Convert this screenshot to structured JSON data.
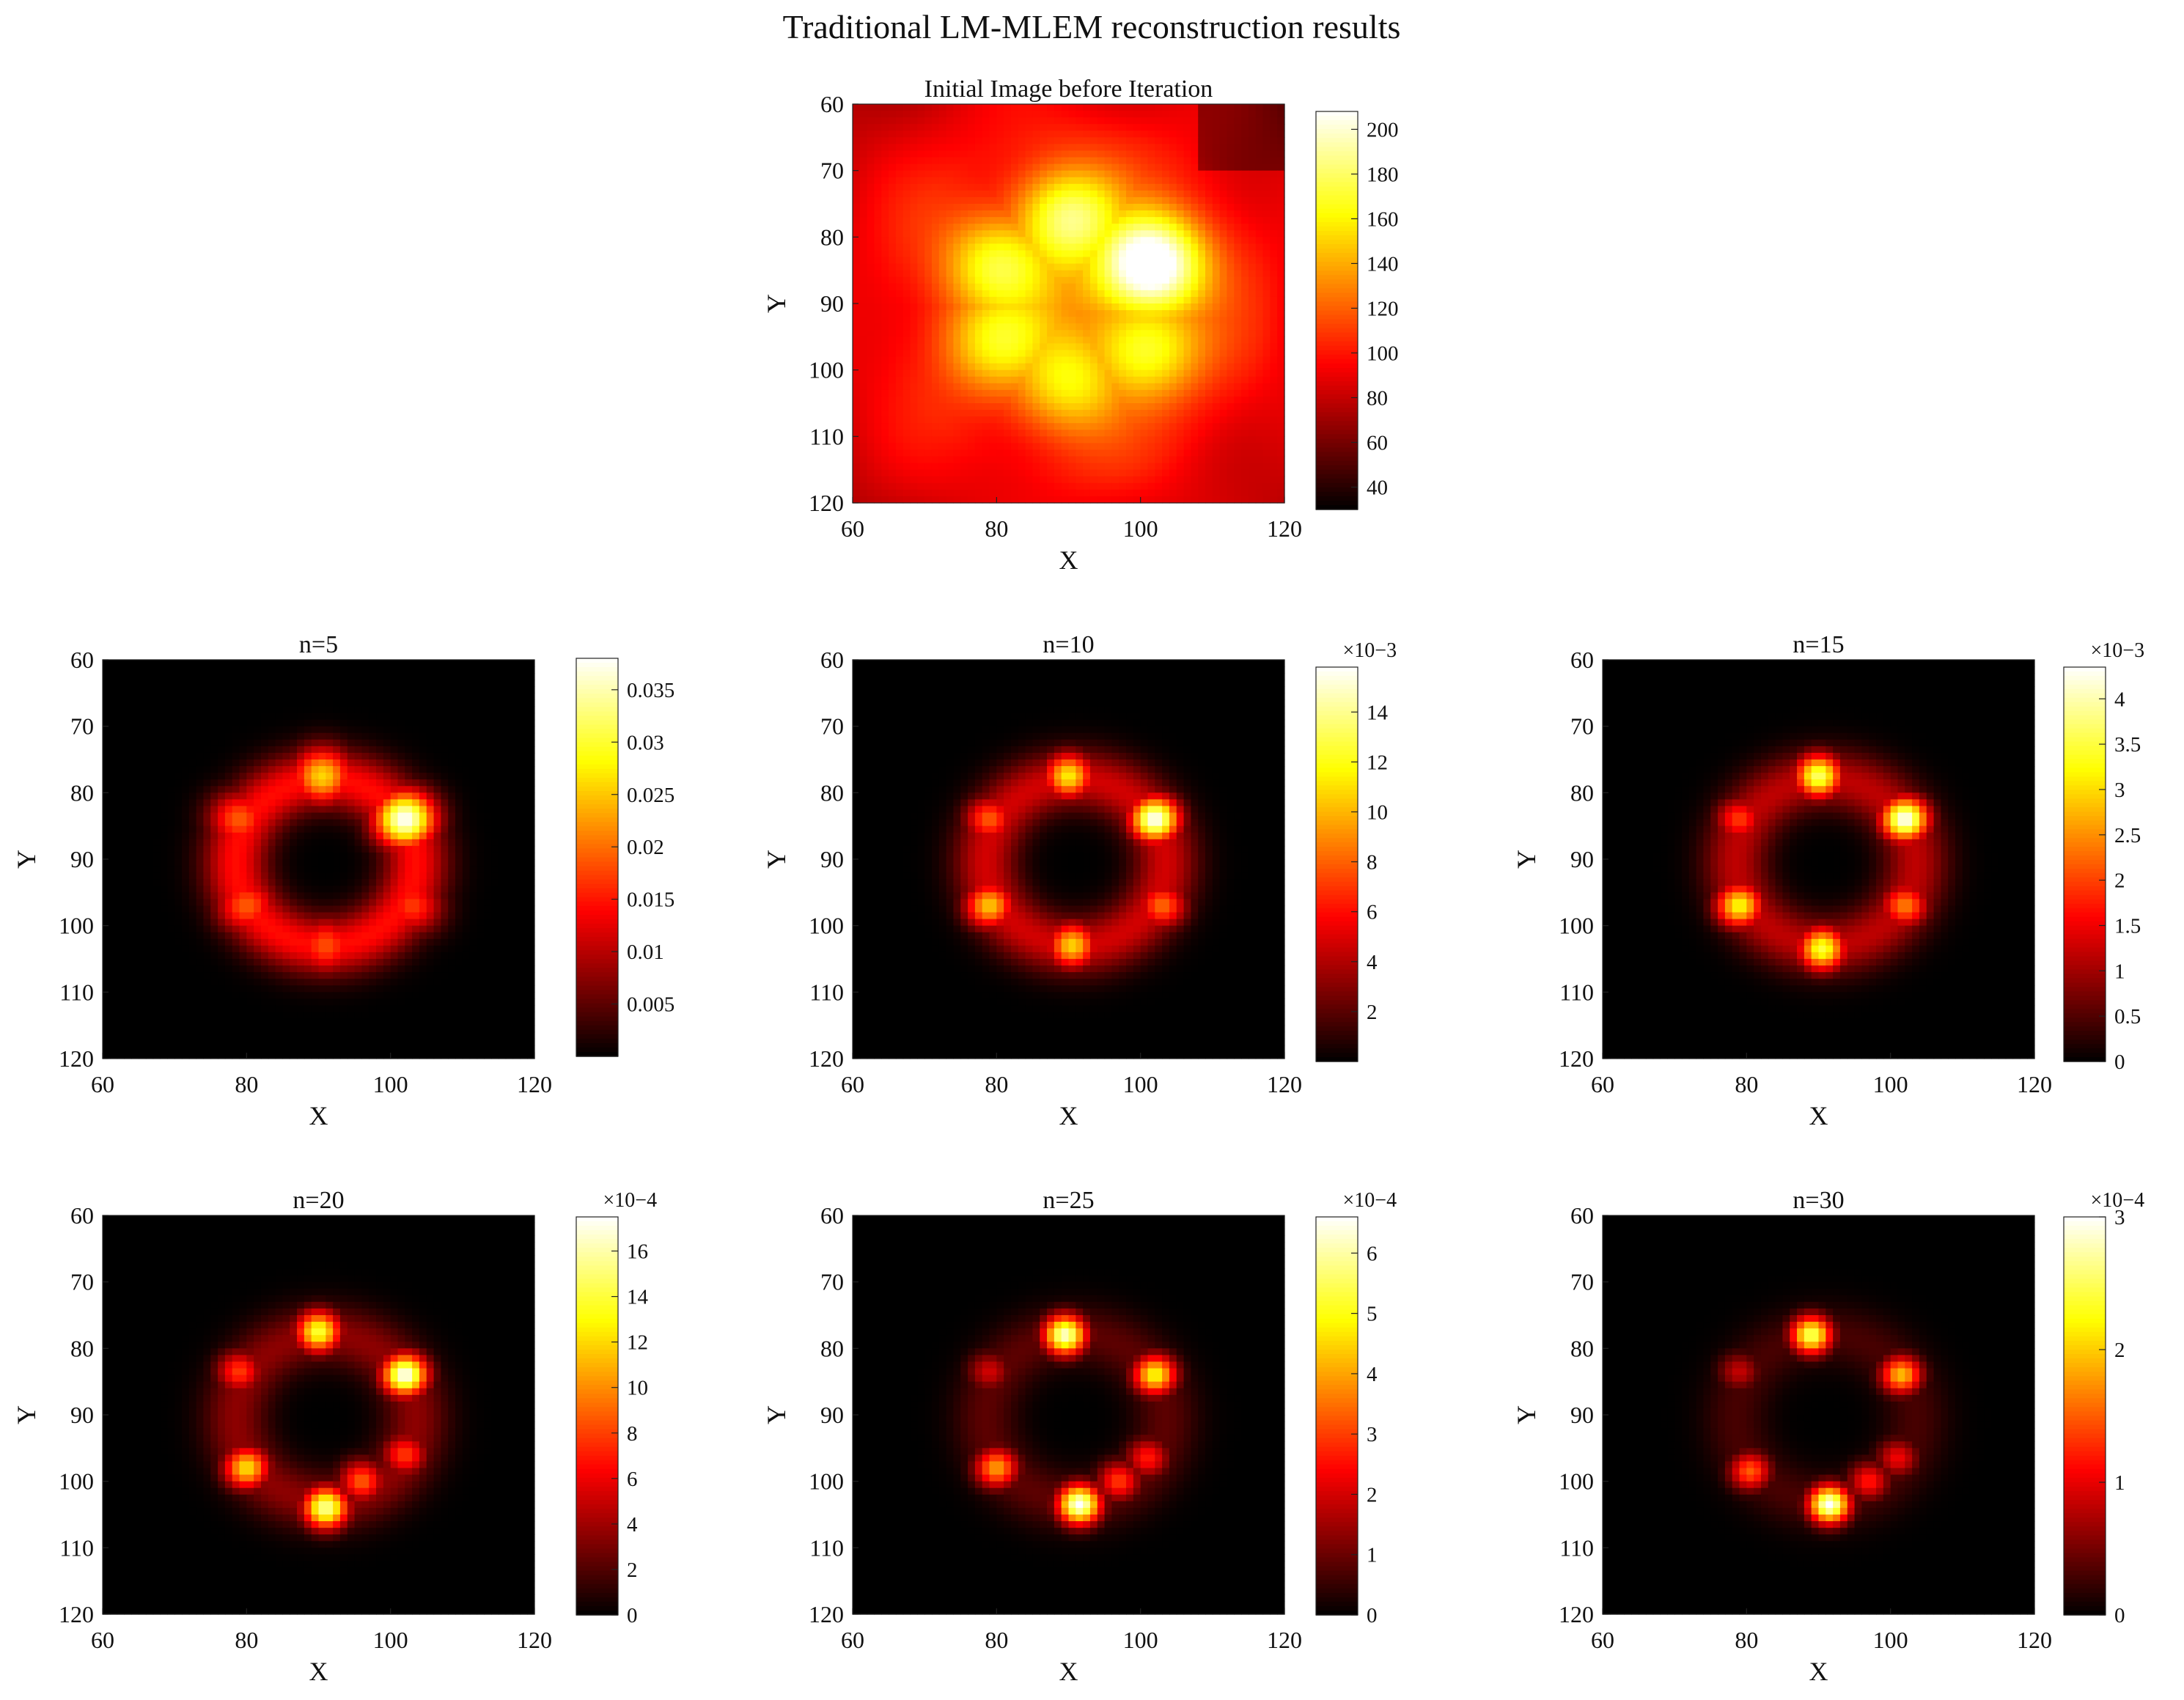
{
  "figure": {
    "suptitle": "Traditional LM-MLEM reconstruction results"
  },
  "colormap": "hot",
  "chart_data": [
    {
      "type": "heatmap",
      "title": "Initial Image before Iteration",
      "xlabel": "X",
      "ylabel": "Y",
      "xlim": [
        60,
        120
      ],
      "ylim": [
        60,
        120
      ],
      "y_axis_reversed": true,
      "xticks": [
        "60",
        "80",
        "100",
        "120"
      ],
      "yticks": [
        "60",
        "70",
        "80",
        "90",
        "100",
        "110",
        "120"
      ],
      "colorbar": {
        "min": 30,
        "max": 208,
        "exponent_label": "",
        "ticks": [
          "40",
          "60",
          "80",
          "100",
          "120",
          "140",
          "160",
          "180",
          "200"
        ],
        "tick_values": [
          40,
          60,
          80,
          100,
          120,
          140,
          160,
          180,
          200
        ]
      },
      "field": {
        "kind": "initial",
        "background": 95,
        "hot_spots": [
          [
            101.5,
            84,
            208
          ],
          [
            90,
            77,
            165
          ],
          [
            80,
            84,
            150
          ],
          [
            80,
            96,
            140
          ],
          [
            90,
            102,
            140
          ],
          [
            101,
            97,
            150
          ]
        ]
      }
    },
    {
      "type": "heatmap",
      "title": "n=5",
      "xlabel": "X",
      "ylabel": "Y",
      "xlim": [
        60,
        120
      ],
      "ylim": [
        60,
        120
      ],
      "y_axis_reversed": true,
      "xticks": [
        "60",
        "80",
        "100",
        "120"
      ],
      "yticks": [
        "60",
        "70",
        "80",
        "90",
        "100",
        "110",
        "120"
      ],
      "colorbar": {
        "min": 0,
        "max": 0.038,
        "exponent_label": "",
        "ticks": [
          "0.005",
          "0.01",
          "0.015",
          "0.02",
          "0.025",
          "0.03",
          "0.035"
        ],
        "tick_values": [
          0.005,
          0.01,
          0.015,
          0.02,
          0.025,
          0.03,
          0.035
        ]
      },
      "field": {
        "kind": "ring",
        "ring_level": 0.38,
        "spot_size": 3.0,
        "spots": [
          [
            102,
            84,
            1.0
          ],
          [
            90.5,
            77.5,
            0.68
          ],
          [
            79,
            84,
            0.5
          ],
          [
            80,
            97,
            0.5
          ],
          [
            91,
            103,
            0.48
          ],
          [
            103,
            97,
            0.45
          ]
        ]
      }
    },
    {
      "type": "heatmap",
      "title": "n=10",
      "xlabel": "X",
      "ylabel": "Y",
      "xlim": [
        60,
        120
      ],
      "ylim": [
        60,
        120
      ],
      "y_axis_reversed": true,
      "xticks": [
        "60",
        "80",
        "100",
        "120"
      ],
      "yticks": [
        "60",
        "70",
        "80",
        "90",
        "100",
        "110",
        "120"
      ],
      "colorbar": {
        "min": 0,
        "max": 0.0158,
        "exponent_label": "×10−3",
        "ticks": [
          "2",
          "4",
          "6",
          "8",
          "10",
          "12",
          "14"
        ],
        "tick_values": [
          0.002,
          0.004,
          0.006,
          0.008,
          0.01,
          0.012,
          0.014
        ]
      },
      "field": {
        "kind": "ring",
        "ring_level": 0.3,
        "spot_size": 2.4,
        "spots": [
          [
            102,
            84,
            1.0
          ],
          [
            90,
            77.5,
            0.72
          ],
          [
            79,
            84,
            0.5
          ],
          [
            79,
            97,
            0.66
          ],
          [
            90.5,
            103,
            0.68
          ],
          [
            103,
            97,
            0.52
          ]
        ]
      }
    },
    {
      "type": "heatmap",
      "title": "n=15",
      "xlabel": "X",
      "ylabel": "Y",
      "xlim": [
        60,
        120
      ],
      "ylim": [
        60,
        120
      ],
      "y_axis_reversed": true,
      "xticks": [
        "60",
        "80",
        "100",
        "120"
      ],
      "yticks": [
        "60",
        "70",
        "80",
        "90",
        "100",
        "110",
        "120"
      ],
      "colorbar": {
        "min": 0,
        "max": 0.00435,
        "exponent_label": "×10−3",
        "ticks": [
          "0",
          "0.5",
          "1",
          "1.5",
          "2",
          "2.5",
          "3",
          "3.5",
          "4"
        ],
        "tick_values": [
          0,
          0.0005,
          0.001,
          0.0015,
          0.002,
          0.0025,
          0.003,
          0.0035,
          0.004
        ]
      },
      "field": {
        "kind": "ring",
        "ring_level": 0.27,
        "spot_size": 2.3,
        "spots": [
          [
            102,
            84,
            1.0
          ],
          [
            90,
            77.5,
            0.85
          ],
          [
            79,
            84,
            0.45
          ],
          [
            79,
            97,
            0.75
          ],
          [
            90.5,
            103.5,
            0.8
          ],
          [
            102,
            97,
            0.55
          ]
        ]
      }
    },
    {
      "type": "heatmap",
      "title": "n=20",
      "xlabel": "X",
      "ylabel": "Y",
      "xlim": [
        60,
        120
      ],
      "ylim": [
        60,
        120
      ],
      "y_axis_reversed": true,
      "xticks": [
        "60",
        "80",
        "100",
        "120"
      ],
      "yticks": [
        "60",
        "70",
        "80",
        "90",
        "100",
        "110",
        "120"
      ],
      "colorbar": {
        "min": 0,
        "max": 0.00175,
        "exponent_label": "×10−4",
        "ticks": [
          "0",
          "2",
          "4",
          "6",
          "8",
          "10",
          "12",
          "14",
          "16"
        ],
        "tick_values": [
          0,
          0.0002,
          0.0004,
          0.0006,
          0.0008,
          0.001,
          0.0012,
          0.0014,
          0.0016
        ]
      },
      "field": {
        "kind": "ring",
        "ring_level": 0.2,
        "spot_size": 2.2,
        "spots": [
          [
            102,
            84,
            1.0
          ],
          [
            90,
            77.5,
            0.8
          ],
          [
            79,
            83.5,
            0.45
          ],
          [
            80,
            98,
            0.7
          ],
          [
            91,
            104,
            0.9
          ],
          [
            102,
            96,
            0.45
          ],
          [
            96,
            100,
            0.5
          ]
        ]
      }
    },
    {
      "type": "heatmap",
      "title": "n=25",
      "xlabel": "X",
      "ylabel": "Y",
      "xlim": [
        60,
        120
      ],
      "ylim": [
        60,
        120
      ],
      "y_axis_reversed": true,
      "xticks": [
        "60",
        "80",
        "100",
        "120"
      ],
      "yticks": [
        "60",
        "70",
        "80",
        "90",
        "100",
        "110",
        "120"
      ],
      "colorbar": {
        "min": 0,
        "max": 0.00066,
        "exponent_label": "×10−4",
        "ticks": [
          "0",
          "1",
          "2",
          "3",
          "4",
          "5",
          "6"
        ],
        "tick_values": [
          0,
          0.0001,
          0.0002,
          0.0003,
          0.0004,
          0.0005,
          0.0006
        ]
      },
      "field": {
        "kind": "ring",
        "ring_level": 0.13,
        "spot_size": 2.1,
        "spots": [
          [
            102,
            84,
            0.75
          ],
          [
            89.5,
            78,
            0.95
          ],
          [
            79,
            83.5,
            0.3
          ],
          [
            80,
            98,
            0.6
          ],
          [
            91.5,
            103.5,
            1.0
          ],
          [
            97,
            100,
            0.45
          ],
          [
            101,
            96.5,
            0.4
          ]
        ]
      }
    },
    {
      "type": "heatmap",
      "title": "n=30",
      "xlabel": "X",
      "ylabel": "Y",
      "xlim": [
        60,
        120
      ],
      "ylim": [
        60,
        120
      ],
      "y_axis_reversed": true,
      "xticks": [
        "60",
        "80",
        "100",
        "120"
      ],
      "yticks": [
        "60",
        "70",
        "80",
        "90",
        "100",
        "110",
        "120"
      ],
      "colorbar": {
        "min": 0,
        "max": 0.0003,
        "exponent_label": "×10−4",
        "ticks": [
          "0",
          "1",
          "2",
          "3"
        ],
        "tick_values": [
          0,
          0.0001,
          0.0002,
          0.0003
        ]
      },
      "field": {
        "kind": "ring",
        "ring_level": 0.1,
        "spot_size": 2.0,
        "spots": [
          [
            101.5,
            84,
            0.65
          ],
          [
            89,
            78,
            0.85
          ],
          [
            79,
            83.5,
            0.28
          ],
          [
            80.5,
            98.5,
            0.5
          ],
          [
            91.5,
            103.5,
            1.0
          ],
          [
            97,
            100,
            0.4
          ],
          [
            101,
            96.5,
            0.35
          ]
        ]
      }
    }
  ]
}
